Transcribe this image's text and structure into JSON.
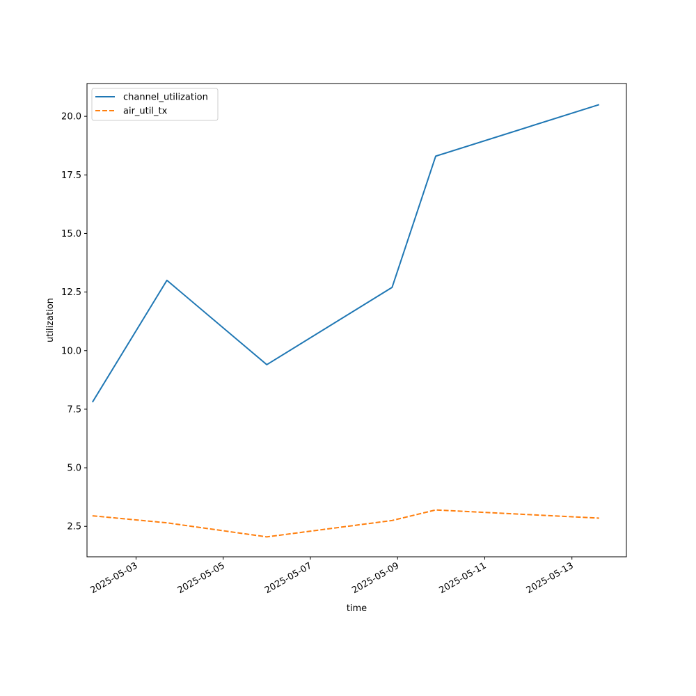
{
  "chart_data": {
    "type": "line",
    "title": "",
    "xlabel": "time",
    "ylabel": "utilization",
    "x_type": "date",
    "xlim": [
      "2025-05-01T21:00",
      "2025-05-14T06:00"
    ],
    "ylim": [
      1.2,
      21.4
    ],
    "x_ticks": [
      "2025-05-03",
      "2025-05-05",
      "2025-05-07",
      "2025-05-09",
      "2025-05-11",
      "2025-05-13"
    ],
    "y_ticks": [
      2.5,
      5.0,
      7.5,
      10.0,
      12.5,
      15.0,
      17.5,
      20.0
    ],
    "y_tick_labels": [
      "2.5",
      "5.0",
      "7.5",
      "10.0",
      "12.5",
      "15.0",
      "17.5",
      "20.0"
    ],
    "grid": false,
    "legend_position": "upper left",
    "series": [
      {
        "name": "channel_utilization",
        "color": "#1f77b4",
        "line_style": "solid",
        "points": [
          {
            "x": "2025-05-02T00:00",
            "y": 7.8
          },
          {
            "x": "2025-05-03T17:00",
            "y": 13.0
          },
          {
            "x": "2025-05-06T00:00",
            "y": 9.4
          },
          {
            "x": "2025-05-08T21:00",
            "y": 12.7
          },
          {
            "x": "2025-05-09T21:00",
            "y": 18.3
          },
          {
            "x": "2025-05-13T15:00",
            "y": 20.5
          }
        ]
      },
      {
        "name": "air_util_tx",
        "color": "#ff7f0e",
        "line_style": "dashed",
        "points": [
          {
            "x": "2025-05-02T00:00",
            "y": 2.95
          },
          {
            "x": "2025-05-03T17:00",
            "y": 2.65
          },
          {
            "x": "2025-05-06T00:00",
            "y": 2.05
          },
          {
            "x": "2025-05-08T21:00",
            "y": 2.75
          },
          {
            "x": "2025-05-09T21:00",
            "y": 3.2
          },
          {
            "x": "2025-05-13T15:00",
            "y": 2.85
          }
        ]
      }
    ]
  }
}
